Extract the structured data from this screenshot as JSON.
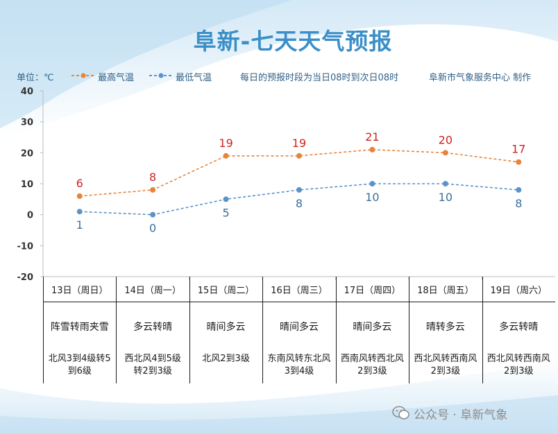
{
  "title": "阜新-七天天气预报",
  "legend": {
    "unit": "单位：℃",
    "high_label": "最高气温",
    "low_label": "最低气温",
    "period_note": "每日的预报时段为当日08时到次日08时",
    "producer": "阜新市气象服务中心 制作"
  },
  "colors": {
    "high": "#e8843a",
    "low": "#5b93c9",
    "high_label": "#cc2222",
    "low_label": "#3b6e9a",
    "axis": "#bbbbbb",
    "title": "#3b8fc8"
  },
  "chart_data": {
    "type": "line",
    "title": "阜新-七天天气预报",
    "ylabel": "单位：℃",
    "ylim": [
      -20,
      40
    ],
    "yticks": [
      40,
      30,
      20,
      10,
      0,
      -10,
      -20
    ],
    "categories": [
      "13日（周日）",
      "14日（周一）",
      "15日（周二）",
      "16日（周三）",
      "17日（周四）",
      "18日（周五）",
      "19日（周六）"
    ],
    "series": [
      {
        "name": "最高气温",
        "values": [
          6,
          8,
          19,
          19,
          21,
          20,
          17
        ]
      },
      {
        "name": "最低气温",
        "values": [
          1,
          0,
          5,
          8,
          10,
          10,
          8
        ]
      }
    ]
  },
  "days": [
    {
      "date": "13日（周日）",
      "weather": "阵雪转雨夹雪",
      "wind": "北风3到4级转5到6级"
    },
    {
      "date": "14日（周一）",
      "weather": "多云转晴",
      "wind": "西北风4到5级转2到3级"
    },
    {
      "date": "15日（周二）",
      "weather": "晴间多云",
      "wind": "北风2到3级"
    },
    {
      "date": "16日（周三）",
      "weather": "晴间多云",
      "wind": "东南风转东北风3到4级"
    },
    {
      "date": "17日（周四）",
      "weather": "晴间多云",
      "wind": "西南风转西北风2到3级"
    },
    {
      "date": "18日（周五）",
      "weather": "晴转多云",
      "wind": "西北风转西南风2到3级"
    },
    {
      "date": "19日（周六）",
      "weather": "多云转晴",
      "wind": "西北风转西南风2到3级"
    }
  ],
  "watermark": "公众号 · 阜新气象"
}
